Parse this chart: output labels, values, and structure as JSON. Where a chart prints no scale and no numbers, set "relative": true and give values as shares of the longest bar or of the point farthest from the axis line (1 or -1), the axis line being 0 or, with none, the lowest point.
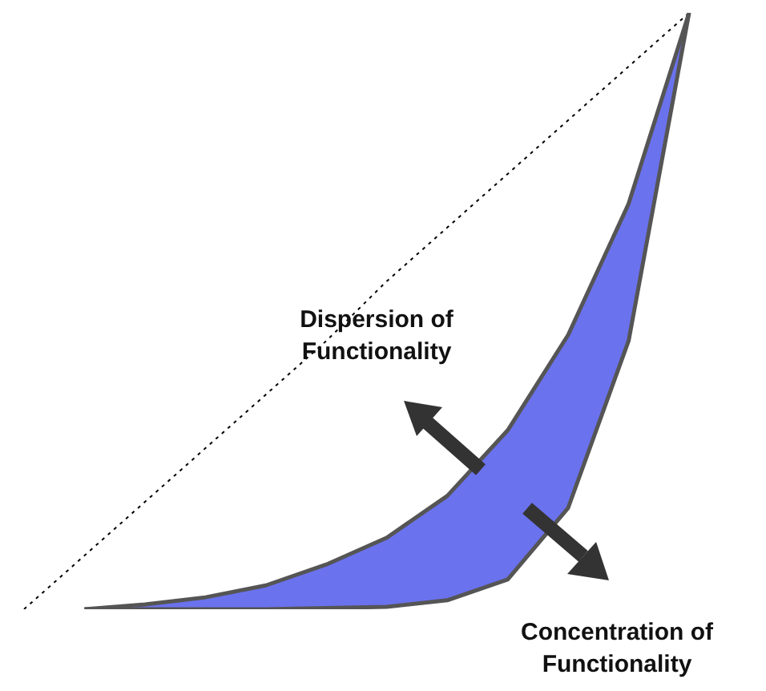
{
  "chart_data": {
    "type": "line",
    "relative": true,
    "marker": "none",
    "categories": [
      null,
      null,
      null,
      null,
      null,
      null,
      null,
      null,
      null,
      null,
      null,
      null
    ],
    "annotations": [
      "Dispersion of Functionality",
      "Concentration of Functionality"
    ],
    "series": [
      {
        "color": "#000000",
        "line_style": "dotted",
        "values": [
          0,
          0.09,
          0.18,
          0.27,
          0.36,
          0.45,
          0.55,
          0.64,
          0.73,
          0.82,
          0.91,
          1
        ]
      },
      {
        "color": "#555555",
        "values": [
          null,
          0,
          0.008,
          0.02,
          0.04,
          0.075,
          0.12,
          0.19,
          0.3,
          0.46,
          0.68,
          1
        ],
        "upper": [
          null,
          0,
          0.008,
          0.02,
          0.04,
          0.075,
          0.12,
          0.19,
          0.3,
          0.46,
          0.68,
          1
        ],
        "lower": [
          null,
          0,
          0,
          0,
          0,
          0.002,
          0.004,
          0.015,
          0.05,
          0.17,
          0.45,
          1
        ]
      }
    ]
  }
}
